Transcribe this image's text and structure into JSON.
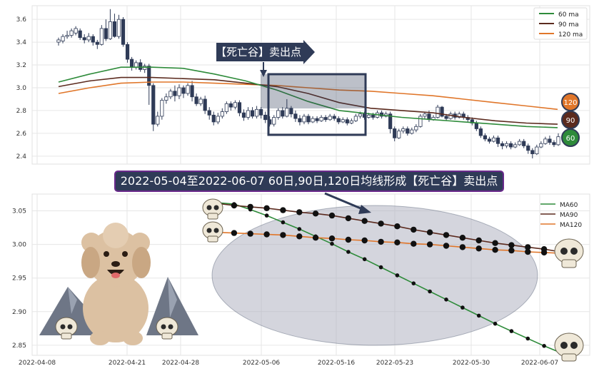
{
  "banner": "2022-05-04至2022-06-07 60日,90日,120日均线形成【死亡谷】卖出点",
  "callout": "【死亡谷】卖出点",
  "colors": {
    "ma60": "#2e8b3a",
    "ma90": "#5b2a1e",
    "ma120": "#e0762a",
    "up": "#ffffff",
    "down": "#2f3b57",
    "valley": "#a9acbb"
  },
  "chart_data": [
    {
      "type": "candlestick",
      "ylim": [
        2.33,
        3.72
      ],
      "yticks": [
        "2.4",
        "2.6",
        "2.8",
        "3.0",
        "3.2",
        "3.4",
        "3.6"
      ],
      "legend": [
        "60 ma",
        "90 ma",
        "120 ma"
      ],
      "badges": [
        "120",
        "90",
        "60"
      ],
      "candles": [
        [
          3.4,
          3.42,
          3.37,
          3.44
        ],
        [
          3.41,
          3.45,
          3.39,
          3.47
        ],
        [
          3.45,
          3.46,
          3.43,
          3.5
        ],
        [
          3.46,
          3.5,
          3.44,
          3.52
        ],
        [
          3.48,
          3.52,
          3.46,
          3.54
        ],
        [
          3.5,
          3.44,
          3.42,
          3.52
        ],
        [
          3.44,
          3.42,
          3.39,
          3.47
        ],
        [
          3.42,
          3.45,
          3.4,
          3.48
        ],
        [
          3.45,
          3.4,
          3.37,
          3.47
        ],
        [
          3.4,
          3.38,
          3.34,
          3.42
        ],
        [
          3.38,
          3.52,
          3.37,
          3.55
        ],
        [
          3.52,
          3.43,
          3.41,
          3.6
        ],
        [
          3.43,
          3.58,
          3.42,
          3.69
        ],
        [
          3.58,
          3.45,
          3.44,
          3.65
        ],
        [
          3.45,
          3.6,
          3.43,
          3.64
        ],
        [
          3.6,
          3.38,
          3.36,
          3.62
        ],
        [
          3.38,
          3.25,
          3.22,
          3.4
        ],
        [
          3.25,
          3.18,
          3.15,
          3.27
        ],
        [
          3.18,
          3.22,
          3.16,
          3.24
        ],
        [
          3.22,
          3.16,
          3.14,
          3.25
        ],
        [
          3.16,
          3.19,
          3.13,
          3.21
        ],
        [
          3.19,
          3.02,
          2.85,
          3.21
        ],
        [
          3.02,
          2.68,
          2.62,
          3.04
        ],
        [
          2.68,
          2.75,
          2.66,
          2.79
        ],
        [
          2.75,
          2.89,
          2.72,
          2.91
        ],
        [
          2.89,
          2.92,
          2.86,
          2.95
        ],
        [
          2.92,
          2.97,
          2.9,
          2.99
        ],
        [
          2.97,
          2.93,
          2.88,
          3.02
        ],
        [
          2.93,
          3.0,
          2.9,
          3.03
        ],
        [
          3.0,
          2.95,
          2.91,
          3.02
        ],
        [
          2.95,
          3.02,
          2.93,
          3.04
        ],
        [
          3.02,
          2.92,
          2.88,
          3.06
        ],
        [
          2.92,
          2.86,
          2.84,
          2.95
        ],
        [
          2.86,
          2.9,
          2.84,
          2.92
        ],
        [
          2.9,
          2.8,
          2.77,
          2.93
        ],
        [
          2.8,
          2.76,
          2.72,
          2.83
        ],
        [
          2.76,
          2.7,
          2.67,
          2.79
        ],
        [
          2.7,
          2.75,
          2.68,
          2.78
        ],
        [
          2.75,
          2.79,
          2.73,
          2.82
        ],
        [
          2.79,
          2.86,
          2.77,
          2.88
        ],
        [
          2.86,
          2.83,
          2.8,
          2.88
        ],
        [
          2.83,
          2.87,
          2.81,
          2.89
        ],
        [
          2.87,
          2.78,
          2.75,
          2.89
        ],
        [
          2.78,
          2.74,
          2.71,
          2.81
        ],
        [
          2.74,
          2.8,
          2.72,
          2.83
        ],
        [
          2.8,
          2.75,
          2.73,
          2.83
        ],
        [
          2.75,
          2.81,
          2.73,
          2.84
        ],
        [
          2.81,
          2.76,
          2.73,
          2.83
        ],
        [
          2.76,
          2.72,
          2.69,
          2.79
        ],
        [
          2.72,
          2.68,
          2.66,
          2.75
        ],
        [
          2.68,
          2.74,
          2.66,
          2.76
        ],
        [
          2.74,
          2.8,
          2.72,
          2.82
        ],
        [
          2.8,
          2.75,
          2.73,
          2.83
        ],
        [
          2.75,
          2.82,
          2.74,
          2.9
        ],
        [
          2.82,
          2.77,
          2.74,
          2.84
        ],
        [
          2.77,
          2.73,
          2.7,
          2.8
        ],
        [
          2.73,
          2.7,
          2.67,
          2.76
        ],
        [
          2.7,
          2.75,
          2.68,
          2.77
        ],
        [
          2.75,
          2.7,
          2.68,
          2.77
        ],
        [
          2.7,
          2.73,
          2.69,
          2.75
        ],
        [
          2.73,
          2.71,
          2.69,
          2.75
        ],
        [
          2.71,
          2.74,
          2.7,
          2.76
        ],
        [
          2.74,
          2.72,
          2.7,
          2.76
        ],
        [
          2.72,
          2.75,
          2.71,
          2.77
        ],
        [
          2.75,
          2.73,
          2.71,
          2.77
        ],
        [
          2.73,
          2.7,
          2.68,
          2.75
        ],
        [
          2.7,
          2.72,
          2.69,
          2.74
        ],
        [
          2.72,
          2.69,
          2.67,
          2.74
        ],
        [
          2.69,
          2.71,
          2.68,
          2.73
        ],
        [
          2.71,
          2.75,
          2.7,
          2.77
        ],
        [
          2.75,
          2.77,
          2.73,
          2.79
        ],
        [
          2.77,
          2.74,
          2.72,
          2.79
        ],
        [
          2.74,
          2.76,
          2.73,
          2.78
        ],
        [
          2.76,
          2.74,
          2.72,
          2.78
        ],
        [
          2.74,
          2.78,
          2.73,
          2.8
        ],
        [
          2.78,
          2.75,
          2.73,
          2.8
        ],
        [
          2.75,
          2.77,
          2.74,
          2.79
        ],
        [
          2.77,
          2.64,
          2.6,
          2.79
        ],
        [
          2.64,
          2.56,
          2.53,
          2.66
        ],
        [
          2.56,
          2.62,
          2.55,
          2.64
        ],
        [
          2.62,
          2.64,
          2.6,
          2.66
        ],
        [
          2.64,
          2.6,
          2.58,
          2.66
        ],
        [
          2.6,
          2.63,
          2.59,
          2.65
        ],
        [
          2.63,
          2.66,
          2.61,
          2.68
        ],
        [
          2.66,
          2.75,
          2.65,
          2.77
        ],
        [
          2.75,
          2.77,
          2.73,
          2.79
        ],
        [
          2.77,
          2.72,
          2.7,
          2.8
        ],
        [
          2.72,
          2.74,
          2.71,
          2.76
        ],
        [
          2.74,
          2.83,
          2.73,
          2.85
        ],
        [
          2.83,
          2.75,
          2.74,
          2.84
        ],
        [
          2.75,
          2.73,
          2.71,
          2.77
        ],
        [
          2.73,
          2.77,
          2.72,
          2.79
        ],
        [
          2.77,
          2.74,
          2.72,
          2.79
        ],
        [
          2.74,
          2.77,
          2.73,
          2.79
        ],
        [
          2.77,
          2.74,
          2.72,
          2.79
        ],
        [
          2.74,
          2.72,
          2.7,
          2.76
        ],
        [
          2.72,
          2.69,
          2.67,
          2.74
        ],
        [
          2.69,
          2.64,
          2.62,
          2.71
        ],
        [
          2.64,
          2.58,
          2.56,
          2.66
        ],
        [
          2.58,
          2.55,
          2.53,
          2.6
        ],
        [
          2.55,
          2.53,
          2.51,
          2.57
        ],
        [
          2.53,
          2.56,
          2.52,
          2.58
        ],
        [
          2.56,
          2.51,
          2.48,
          2.58
        ],
        [
          2.51,
          2.49,
          2.46,
          2.53
        ],
        [
          2.49,
          2.51,
          2.47,
          2.53
        ],
        [
          2.51,
          2.48,
          2.46,
          2.53
        ],
        [
          2.48,
          2.5,
          2.47,
          2.52
        ],
        [
          2.5,
          2.53,
          2.49,
          2.55
        ],
        [
          2.53,
          2.49,
          2.47,
          2.55
        ],
        [
          2.49,
          2.45,
          2.42,
          2.51
        ],
        [
          2.45,
          2.42,
          2.38,
          2.47
        ],
        [
          2.42,
          2.48,
          2.41,
          2.5
        ],
        [
          2.48,
          2.51,
          2.47,
          2.53
        ],
        [
          2.51,
          2.55,
          2.5,
          2.57
        ],
        [
          2.55,
          2.52,
          2.5,
          2.58
        ],
        [
          2.52,
          2.5,
          2.48,
          2.54
        ],
        [
          2.5,
          2.57,
          2.49,
          2.6
        ]
      ],
      "ma60": [
        3.05,
        3.12,
        3.18,
        3.18,
        3.17,
        3.12,
        3.06,
        2.98,
        2.88,
        2.8,
        2.77,
        2.74,
        2.72,
        2.7,
        2.68,
        2.66,
        2.65
      ],
      "ma90": [
        3.01,
        3.06,
        3.09,
        3.09,
        3.08,
        3.07,
        3.04,
        3.01,
        2.95,
        2.87,
        2.82,
        2.8,
        2.78,
        2.74,
        2.71,
        2.69,
        2.68
      ],
      "ma120": [
        2.95,
        3.0,
        3.04,
        3.05,
        3.05,
        3.04,
        3.03,
        3.02,
        3.0,
        2.98,
        2.97,
        2.95,
        2.93,
        2.9,
        2.87,
        2.84,
        2.81
      ]
    },
    {
      "type": "line",
      "ylim": [
        2.835,
        3.075
      ],
      "yticks": [
        "2.85",
        "2.90",
        "2.95",
        "3.00",
        "3.05"
      ],
      "xticks": [
        "2022-04-08",
        "2022-04-21",
        "2022-04-28",
        "2022-05-06",
        "2022-05-16",
        "2022-05-23",
        "2022-05-30",
        "2022-06-07"
      ],
      "legend": [
        "MA60",
        "MA90",
        "MA120"
      ],
      "series": [
        {
          "name": "MA60",
          "values": [
            3.062,
            3.06,
            3.052,
            3.043,
            3.033,
            3.023,
            3.012,
            3.001,
            2.989,
            2.978,
            2.966,
            2.954,
            2.942,
            2.93,
            2.918,
            2.906,
            2.894,
            2.882,
            2.871,
            2.86,
            2.849,
            2.839
          ]
        },
        {
          "name": "MA90",
          "values": [
            3.061,
            3.058,
            3.056,
            3.054,
            3.051,
            3.048,
            3.046,
            3.043,
            3.039,
            3.035,
            3.031,
            3.027,
            3.022,
            3.018,
            3.014,
            3.01,
            3.006,
            3.002,
            2.999,
            2.996,
            2.993,
            2.989
          ]
        },
        {
          "name": "MA120",
          "values": [
            3.018,
            3.017,
            3.016,
            3.015,
            3.014,
            3.012,
            3.01,
            3.009,
            3.007,
            3.006,
            3.004,
            3.003,
            3.001,
            3.0,
            2.998,
            2.996,
            2.994,
            2.992,
            2.991,
            2.989,
            2.988,
            2.987
          ]
        }
      ]
    }
  ]
}
